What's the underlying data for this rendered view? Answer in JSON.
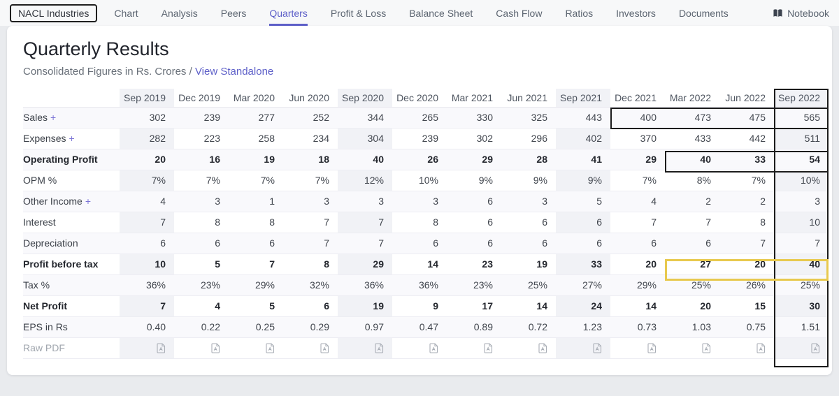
{
  "nav": {
    "company": "NACL Industries",
    "items": [
      {
        "label": "Chart",
        "active": false
      },
      {
        "label": "Analysis",
        "active": false
      },
      {
        "label": "Peers",
        "active": false
      },
      {
        "label": "Quarters",
        "active": true
      },
      {
        "label": "Profit & Loss",
        "active": false
      },
      {
        "label": "Balance Sheet",
        "active": false
      },
      {
        "label": "Cash Flow",
        "active": false
      },
      {
        "label": "Ratios",
        "active": false
      },
      {
        "label": "Investors",
        "active": false
      },
      {
        "label": "Documents",
        "active": false
      }
    ],
    "notebook_label": "Notebook"
  },
  "page": {
    "title": "Quarterly Results",
    "subtitle_prefix": "Consolidated Figures in Rs. Crores /",
    "view_link": "View Standalone"
  },
  "table": {
    "columns": [
      "Sep 2019",
      "Dec 2019",
      "Mar 2020",
      "Jun 2020",
      "Sep 2020",
      "Dec 2020",
      "Mar 2021",
      "Jun 2021",
      "Sep 2021",
      "Dec 2021",
      "Mar 2022",
      "Jun 2022",
      "Sep 2022"
    ],
    "rows": [
      {
        "label": "Sales",
        "suffix": "+",
        "bold": false,
        "values": [
          "302",
          "239",
          "277",
          "252",
          "344",
          "265",
          "330",
          "325",
          "443",
          "400",
          "473",
          "475",
          "565"
        ]
      },
      {
        "label": "Expenses",
        "suffix": "+",
        "bold": false,
        "values": [
          "282",
          "223",
          "258",
          "234",
          "304",
          "239",
          "302",
          "296",
          "402",
          "370",
          "433",
          "442",
          "511"
        ]
      },
      {
        "label": "Operating Profit",
        "bold": true,
        "values": [
          "20",
          "16",
          "19",
          "18",
          "40",
          "26",
          "29",
          "28",
          "41",
          "29",
          "40",
          "33",
          "54"
        ]
      },
      {
        "label": "OPM %",
        "bold": false,
        "values": [
          "7%",
          "7%",
          "7%",
          "7%",
          "12%",
          "10%",
          "9%",
          "9%",
          "9%",
          "7%",
          "8%",
          "7%",
          "10%"
        ]
      },
      {
        "label": "Other Income",
        "suffix": "+",
        "bold": false,
        "values": [
          "4",
          "3",
          "1",
          "3",
          "3",
          "3",
          "6",
          "3",
          "5",
          "4",
          "2",
          "2",
          "3"
        ]
      },
      {
        "label": "Interest",
        "bold": false,
        "values": [
          "7",
          "8",
          "8",
          "7",
          "7",
          "8",
          "6",
          "6",
          "6",
          "7",
          "7",
          "8",
          "10"
        ]
      },
      {
        "label": "Depreciation",
        "bold": false,
        "values": [
          "6",
          "6",
          "6",
          "7",
          "7",
          "6",
          "6",
          "6",
          "6",
          "6",
          "6",
          "7",
          "7"
        ]
      },
      {
        "label": "Profit before tax",
        "bold": true,
        "values": [
          "10",
          "5",
          "7",
          "8",
          "29",
          "14",
          "23",
          "19",
          "33",
          "20",
          "27",
          "20",
          "40"
        ]
      },
      {
        "label": "Tax %",
        "bold": false,
        "values": [
          "36%",
          "23%",
          "29%",
          "32%",
          "36%",
          "36%",
          "23%",
          "25%",
          "27%",
          "29%",
          "25%",
          "26%",
          "25%"
        ]
      },
      {
        "label": "Net Profit",
        "bold": true,
        "values": [
          "7",
          "4",
          "5",
          "6",
          "19",
          "9",
          "17",
          "14",
          "24",
          "14",
          "20",
          "15",
          "30"
        ]
      },
      {
        "label": "EPS in Rs",
        "bold": false,
        "values": [
          "0.40",
          "0.22",
          "0.25",
          "0.29",
          "0.97",
          "0.47",
          "0.89",
          "0.72",
          "1.23",
          "0.73",
          "1.03",
          "0.75",
          "1.51"
        ]
      },
      {
        "label": "Raw PDF",
        "type": "pdf",
        "bold": false,
        "values": []
      }
    ]
  },
  "colors": {
    "accent_purple": "#5d5fc8",
    "highlight_black": "#1c1c1c",
    "highlight_yellow": "#e8c94e",
    "column_stripe": "#f1f2f6",
    "row_stripe": "#f9f9fc"
  },
  "highlights": [
    {
      "name": "sep-2022-column",
      "color": "#1c1c1c"
    },
    {
      "name": "sales-last-four-quarters",
      "color": "#1c1c1c"
    },
    {
      "name": "operating-profit-recent",
      "color": "#1c1c1c"
    },
    {
      "name": "profit-before-tax-recent",
      "color": "#e8c94e"
    }
  ]
}
